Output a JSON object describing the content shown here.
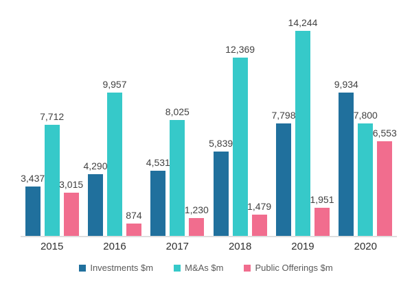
{
  "chart_data": {
    "type": "bar",
    "title": "",
    "categories": [
      "2015",
      "2016",
      "2017",
      "2018",
      "2019",
      "2020"
    ],
    "series": [
      {
        "name": "Investments $m",
        "color": "#20709d",
        "values": [
          3437,
          4290,
          4531,
          5839,
          7798,
          9934
        ],
        "labels": [
          "3,437",
          "4,290",
          "4,531",
          "5,839",
          "7,798",
          "9,934"
        ]
      },
      {
        "name": "M&As $m",
        "color": "#36c9c9",
        "values": [
          7712,
          9957,
          8025,
          12369,
          14244,
          7800
        ],
        "labels": [
          "7,712",
          "9,957",
          "8,025",
          "12,369",
          "14,244",
          "7,800"
        ]
      },
      {
        "name": "Public Offerings $m",
        "color": "#f16d8e",
        "values": [
          3015,
          874,
          1230,
          1479,
          1951,
          6553
        ],
        "labels": [
          "3,015",
          "874",
          "1,230",
          "1,479",
          "1,951",
          "6,553"
        ]
      }
    ],
    "xlabel": "",
    "ylabel": "",
    "ylim": [
      0,
      15400
    ],
    "grid": false,
    "y_axis_visible": false,
    "value_labels": "outside-end",
    "legend_position": "bottom",
    "axis_line_color": "#dedede",
    "value_label_color": "#404040",
    "category_label_color": "#2e2e2e",
    "legend_text_color": "#595959",
    "background_color": "#ffffff"
  }
}
